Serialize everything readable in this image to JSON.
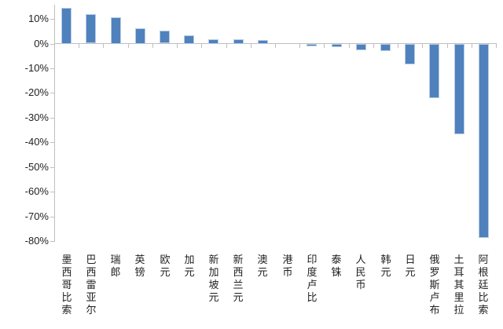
{
  "chart_data": {
    "type": "bar",
    "title": "",
    "categories": [
      "墨西哥比索",
      "巴西雷亚尔",
      "瑞郎",
      "英镑",
      "欧元",
      "加元",
      "新加坡元",
      "新西兰元",
      "澳元",
      "港币",
      "印度卢比",
      "泰铢",
      "人民币",
      "韩元",
      "日元",
      "俄罗斯卢布",
      "土耳其里拉",
      "阿根廷比索"
    ],
    "values": [
      14.5,
      11.8,
      10.7,
      6.3,
      5.2,
      3.4,
      1.8,
      1.8,
      1.5,
      0.0,
      -0.8,
      -1.2,
      -2.5,
      -2.8,
      -8.3,
      -22.0,
      -36.5,
      -78.5
    ],
    "unit": "%",
    "xlabel": "",
    "ylabel": "",
    "ytick_values": [
      10,
      0,
      -10,
      -20,
      -30,
      -40,
      -50,
      -60,
      -70,
      -80
    ],
    "ytick_labels": [
      "10%",
      "0%",
      "-10%",
      "-20%",
      "-30%",
      "-40%",
      "-50%",
      "-60%",
      "-70%",
      "-80%"
    ],
    "ylim": [
      -80,
      15.5
    ],
    "grid": false,
    "legend": "none",
    "bar_color": "#4f81bd",
    "bar_border_color": "#b7cbe3",
    "axis_color": "#bfbfbf",
    "text_color": "#1f1f1f"
  }
}
